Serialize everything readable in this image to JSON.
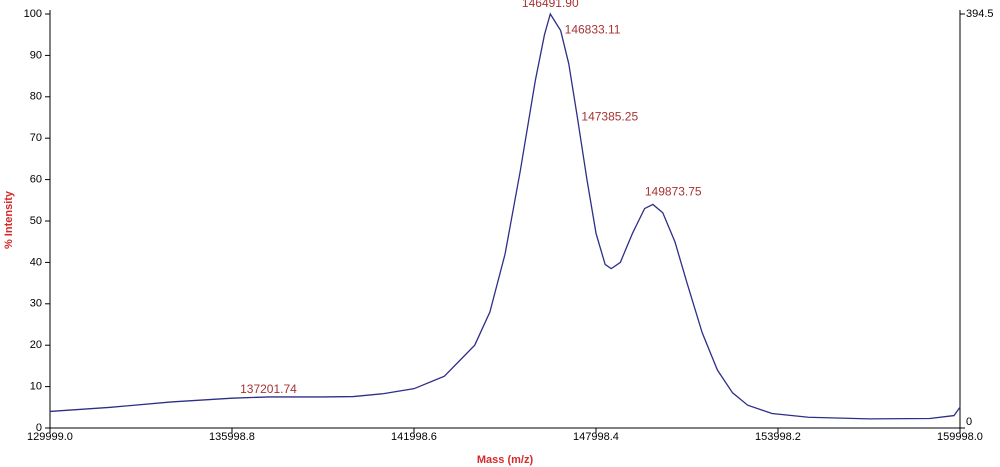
{
  "chart_data": {
    "type": "line",
    "x_label": "Mass (m/z)",
    "y_label": "% Intensity",
    "color": "#2e2e88",
    "x": [
      129999.0,
      132000,
      134000,
      136000,
      137201.74,
      139000,
      140000,
      141000,
      142000,
      143000,
      144000,
      144500,
      145000,
      145500,
      146000,
      146300,
      146491.9,
      146833.11,
      147100,
      147385.25,
      147700,
      148000,
      148300,
      148500,
      148800,
      149200,
      149600,
      149873.75,
      150200,
      150600,
      151000,
      151500,
      152000,
      152500,
      153000,
      153800,
      155000,
      157000,
      159000,
      159800,
      159998.0
    ],
    "values": [
      4,
      5,
      6.3,
      7.2,
      7.5,
      7.5,
      7.6,
      8.3,
      9.5,
      12.5,
      20,
      28,
      42,
      62,
      84,
      95,
      100,
      96,
      88,
      75,
      60,
      47,
      39.5,
      38.5,
      40,
      47,
      53,
      54,
      52,
      45,
      35,
      23,
      14,
      8.5,
      5.5,
      3.5,
      2.6,
      2.2,
      2.3,
      3,
      5
    ],
    "annotations": [
      {
        "text": "146491.90",
        "x": 146491.9,
        "y": 100
      },
      {
        "text": "146833.11",
        "x": 146833.11,
        "y": 96
      },
      {
        "text": "147385.25",
        "x": 147385.25,
        "y": 75
      },
      {
        "text": "149873.75",
        "x": 149873.75,
        "y": 54
      },
      {
        "text": "137201.74",
        "x": 137201.74,
        "y": 7.5
      }
    ],
    "xlim": [
      129999.0,
      159998.0
    ],
    "xticks": [
      {
        "value": 129999.0,
        "label": "129999.0"
      },
      {
        "value": 135998.8,
        "label": "135998.8"
      },
      {
        "value": 141998.6,
        "label": "141998.6"
      },
      {
        "value": 147998.4,
        "label": "147998.4"
      },
      {
        "value": 153998.2,
        "label": "153998.2"
      },
      {
        "value": 159998.0,
        "label": "159998.0"
      }
    ],
    "ylim": [
      0,
      100
    ],
    "yticks": [
      0,
      10,
      20,
      30,
      40,
      50,
      60,
      70,
      80,
      90,
      100
    ],
    "y2lim": [
      0,
      394.5
    ],
    "y2ticks": [
      0,
      394.5
    ],
    "grid": false
  }
}
